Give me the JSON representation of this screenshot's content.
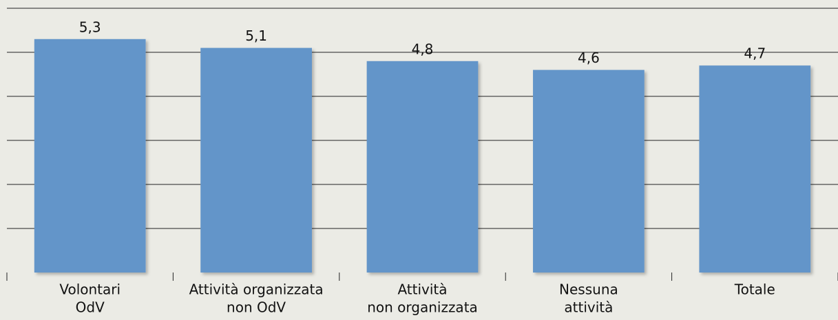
{
  "chart_data": {
    "type": "bar",
    "categories": [
      [
        "Volontari",
        "OdV"
      ],
      [
        "Attività organizzata",
        "non OdV"
      ],
      [
        "Attività",
        "non organizzata"
      ],
      [
        "Nessuna",
        "attività"
      ],
      [
        "Totale"
      ]
    ],
    "values": [
      5.3,
      5.1,
      4.8,
      4.6,
      4.7
    ],
    "value_labels": [
      "5,3",
      "5,1",
      "4,8",
      "4,6",
      "4,7"
    ],
    "color": "#6495c9",
    "ylim": [
      0,
      6
    ],
    "yticks": [
      0,
      1,
      2,
      3,
      4,
      5,
      6
    ],
    "grid": true
  }
}
